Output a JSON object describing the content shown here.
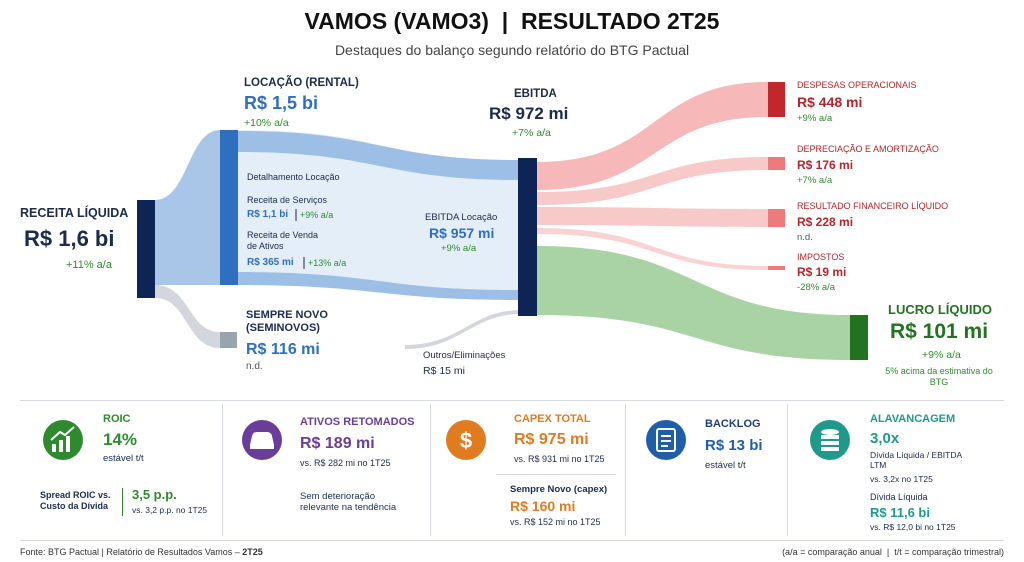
{
  "header": {
    "title": "VAMOS (VAMO3)  |  RESULTADO 2T25",
    "subtitle": "Destaques do balanço segundo relatório do BTG Pactual"
  },
  "sankey": {
    "receita": {
      "label": "RECEITA LÍQUIDA",
      "value": "R$ 1,6 bi",
      "change": "+11% a/a"
    },
    "locacao": {
      "label": "LOCAÇÃO (RENTAL)",
      "value": "R$ 1,5 bi",
      "change": "+10% a/a"
    },
    "detalhamento": {
      "title": "Detalhamento Locação",
      "items": [
        {
          "label": "Receita de Serviços",
          "value": "R$ 1,1 bi",
          "change": "+9% a/a"
        },
        {
          "label": "Receita de Venda de Ativos",
          "value": "R$ 365 mi",
          "change": "+13% a/a"
        }
      ]
    },
    "seminovos": {
      "label": "SEMPRE NOVO (SEMINOVOS)",
      "value": "R$ 116 mi",
      "change": "n.d."
    },
    "ebitda": {
      "label": "EBITDA",
      "value": "R$ 972 mi",
      "change": "+7% a/a"
    },
    "ebitda_locacao": {
      "label": "EBITDA Locação",
      "value": "R$ 957 mi",
      "change": "+9% a/a"
    },
    "outros": {
      "label": "Outros/Eliminações",
      "value": "R$ 15 mi"
    },
    "expenses": [
      {
        "label": "DESPESAS OPERACIONAIS",
        "value": "R$ 448 mi",
        "change": "+9% a/a"
      },
      {
        "label": "DEPRECIAÇÃO E AMORTIZAÇÃO",
        "value": "R$ 176 mi",
        "change": "+7% a/a"
      },
      {
        "label": "RESULTADO FINANCEIRO LÍQUIDO",
        "value": "R$ 228 mi",
        "change": "n.d."
      },
      {
        "label": "IMPOSTOS",
        "value": "R$ 19 mi",
        "change": "-28% a/a"
      }
    ],
    "lucro": {
      "label": "LUCRO LÍQUIDO",
      "value": "R$ 101 mi",
      "change": "+9% a/a",
      "note": "5% acima da estimativa do BTG"
    }
  },
  "cards": {
    "roic": {
      "title": "ROIC",
      "value": "14%",
      "sub": "estável t/t",
      "spread_label": "Spread ROIC vs. Custo da Dívida",
      "spread_value": "3,5 p.p.",
      "spread_sub": "vs. 3,2 p.p. no 1T25"
    },
    "ativos": {
      "title": "ATIVOS RETOMADOS",
      "value": "R$ 189 mi",
      "sub": "vs. R$ 282 mi no 1T25",
      "note": "Sem deterioração relevante na tendência"
    },
    "capex": {
      "title": "CAPEX TOTAL",
      "value": "R$ 975 mi",
      "sub": "vs. R$ 931 mi no 1T25",
      "second_label": "Sempre Novo (capex)",
      "second_value": "R$ 160 mi",
      "second_sub": "vs. R$ 152 mi no 1T25"
    },
    "backlog": {
      "title": "BACKLOG",
      "value": "R$ 13 bi",
      "sub": "estável t/t"
    },
    "alavancagem": {
      "title": "ALAVANCAGEM",
      "value": "3,0x",
      "label1": "Dívida Líquida / EBITDA LTM",
      "sub1": "vs. 3,2x no 1T25",
      "label2": "Dívida Líquida",
      "value2": "R$ 11,6 bi",
      "sub2": "vs. R$ 12,0 bi no 1T25"
    }
  },
  "footer": {
    "source": "Fonte: BTG Pactual | Relatório de Resultados Vamos – ",
    "source_bold": "2T25",
    "legend": "(a/a = comparação anual  |  t/t = comparação trimestral)"
  }
}
